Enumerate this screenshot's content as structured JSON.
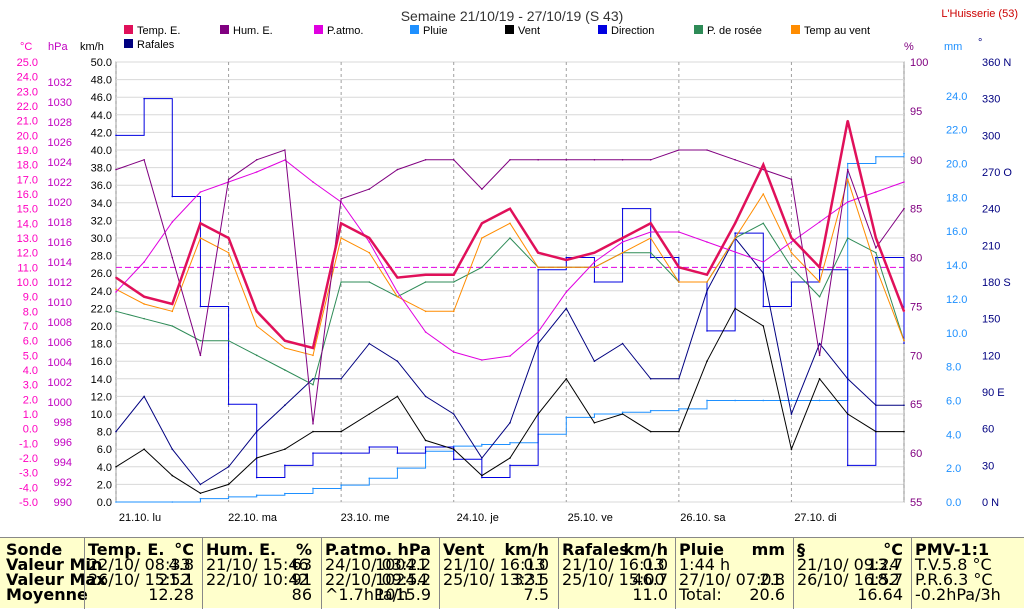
{
  "header": {
    "title": "Semaine 21/10/19 - 27/10/19 (S 43)",
    "station": "L'Huisserie (53)"
  },
  "units_left": {
    "celsius": "°C",
    "hpa": "hPa",
    "kmh": "km/h"
  },
  "units_right": {
    "pct": "%",
    "mm": "mm",
    "deg": "°"
  },
  "legend": [
    {
      "label": "Temp. E.",
      "color": "#E0105A"
    },
    {
      "label": "Rafales",
      "color": "#000080"
    },
    {
      "label": "Hum. E.",
      "color": "#800080"
    },
    {
      "label": "P.atmo.",
      "color": "#E000E0"
    },
    {
      "label": "Pluie",
      "color": "#1E90FF"
    },
    {
      "label": "Vent",
      "color": "#000000"
    },
    {
      "label": "Direction",
      "color": "#0000E0"
    },
    {
      "label": "P. de rosée",
      "color": "#2E8B57"
    },
    {
      "label": "Temp au vent",
      "color": "#FF8C00"
    }
  ],
  "colors": {
    "grid": "#A0A0A0",
    "temp_axis": "#FF00C0",
    "hpa_axis": "#C000C0",
    "hum_axis": "#800080",
    "rain_axis": "#1E90FF",
    "dir_axis": "#000080",
    "ref_line": "#E000E0"
  },
  "chart_data": {
    "type": "line",
    "title": "Semaine 21/10/19 - 27/10/19 (S 43)",
    "x_categories": [
      "21.10. lu",
      "22.10. ma",
      "23.10. me",
      "24.10. je",
      "25.10. ve",
      "26.10. sa",
      "27.10. di"
    ],
    "x_range_hours": [
      0,
      168
    ],
    "axes": {
      "temp_c": {
        "min": -5,
        "max": 25,
        "ticks": [
          "25.0",
          "24.0",
          "23.0",
          "22.0",
          "21.0",
          "20.0",
          "19.0",
          "18.0",
          "17.0",
          "16.0",
          "15.0",
          "14.0",
          "13.0",
          "12.0",
          "11.0",
          "10.0",
          "9.0",
          "8.0",
          "7.0",
          "6.0",
          "5.0",
          "4.0",
          "3.0",
          "2.0",
          "1.0",
          "0.0",
          "-1.0",
          "-2.0",
          "-3.0",
          "-4.0",
          "-5.0"
        ]
      },
      "pressure_hpa": {
        "min": 990,
        "max": 1034,
        "ticks": [
          "1032",
          "1030",
          "1028",
          "1026",
          "1024",
          "1022",
          "1020",
          "1018",
          "1016",
          "1014",
          "1012",
          "1010",
          "1008",
          "1006",
          "1004",
          "1002",
          "1000",
          "998",
          "996",
          "994",
          "992",
          "990"
        ]
      },
      "wind_kmh": {
        "min": 0,
        "max": 50,
        "ticks": [
          "50.0",
          "48.0",
          "46.0",
          "44.0",
          "42.0",
          "40.0",
          "38.0",
          "36.0",
          "34.0",
          "32.0",
          "30.0",
          "28.0",
          "26.0",
          "24.0",
          "22.0",
          "20.0",
          "18.0",
          "16.0",
          "14.0",
          "12.0",
          "10.0",
          "8.0",
          "6.0",
          "4.0",
          "2.0",
          "0.0"
        ]
      },
      "humidity_pct": {
        "min": 55,
        "max": 100,
        "ticks": [
          "100",
          "95",
          "90",
          "85",
          "80",
          "75",
          "70",
          "65",
          "60",
          "55"
        ]
      },
      "rain_mm": {
        "min": 0,
        "max": 26,
        "ticks": [
          "24.0",
          "22.0",
          "20.0",
          "18.0",
          "16.0",
          "14.0",
          "12.0",
          "10.0",
          "8.0",
          "6.0",
          "4.0",
          "2.0",
          "0.0"
        ]
      },
      "direction_deg": {
        "min": 0,
        "max": 360,
        "ticks": [
          "360 N",
          "330",
          "300",
          "270 O",
          "240",
          "210",
          "180 S",
          "150",
          "120",
          "90 E",
          "60",
          "30",
          "0 N"
        ]
      }
    },
    "reference_line_c": 11.0,
    "series": [
      {
        "name": "Temp. E.",
        "axis": "temp_c",
        "t": [
          0,
          6,
          12,
          18,
          24,
          30,
          36,
          42,
          48,
          54,
          60,
          66,
          72,
          78,
          84,
          90,
          96,
          102,
          108,
          114,
          120,
          126,
          132,
          138,
          144,
          150,
          156,
          162,
          168
        ],
        "values": [
          10.3,
          9,
          8.5,
          14,
          13,
          8,
          6,
          5.5,
          14,
          13,
          10.3,
          10.5,
          10.5,
          14,
          15,
          12,
          11.5,
          12,
          13,
          14,
          11,
          10.5,
          14,
          18,
          13,
          11,
          21,
          13,
          8
        ]
      },
      {
        "name": "Hum. E.",
        "axis": "humidity_pct",
        "t": [
          0,
          6,
          12,
          18,
          24,
          30,
          36,
          42,
          48,
          54,
          60,
          66,
          72,
          78,
          84,
          90,
          96,
          102,
          108,
          114,
          120,
          126,
          132,
          138,
          144,
          150,
          156,
          162,
          168
        ],
        "values": [
          89,
          90,
          80,
          70,
          88,
          90,
          91,
          63,
          86,
          87,
          89,
          90,
          90,
          87,
          90,
          90,
          90,
          90,
          90,
          90,
          91,
          91,
          90,
          89,
          88,
          70,
          89,
          81,
          85
        ]
      },
      {
        "name": "P.atmo.",
        "axis": "pressure_hpa",
        "t": [
          0,
          6,
          12,
          18,
          24,
          30,
          36,
          42,
          48,
          54,
          60,
          66,
          72,
          78,
          84,
          90,
          96,
          102,
          108,
          114,
          120,
          126,
          132,
          138,
          144,
          150,
          156,
          162,
          168
        ],
        "values": [
          1011,
          1014,
          1018,
          1021,
          1022,
          1023,
          1024.2,
          1022,
          1020,
          1016,
          1011,
          1007,
          1005,
          1004.2,
          1004.6,
          1007,
          1011,
          1014,
          1016,
          1017,
          1017,
          1016,
          1015,
          1014,
          1016,
          1018,
          1020,
          1021,
          1022
        ]
      },
      {
        "name": "Pluie",
        "axis": "rain_mm",
        "t": [
          0,
          12,
          18,
          24,
          30,
          36,
          42,
          48,
          54,
          60,
          66,
          72,
          78,
          84,
          90,
          96,
          102,
          108,
          114,
          120,
          126,
          132,
          138,
          144,
          150,
          156,
          162,
          168
        ],
        "values": [
          0,
          0,
          0.2,
          0.3,
          0.4,
          0.5,
          0.8,
          1.0,
          1.4,
          2.0,
          3.0,
          3.3,
          3.4,
          3.5,
          4.0,
          5.0,
          5.2,
          5.3,
          5.4,
          5.5,
          6.0,
          6.0,
          6.0,
          6.0,
          6.0,
          20.0,
          20.4,
          20.6
        ]
      },
      {
        "name": "Vent",
        "axis": "wind_kmh",
        "t": [
          0,
          6,
          12,
          18,
          24,
          30,
          36,
          42,
          48,
          54,
          60,
          66,
          72,
          78,
          84,
          90,
          96,
          102,
          108,
          114,
          120,
          126,
          132,
          138,
          144,
          150,
          156,
          162,
          168
        ],
        "values": [
          4,
          6,
          3,
          1,
          2,
          5,
          6,
          8,
          8,
          10,
          12,
          7,
          6,
          3,
          5,
          10,
          14,
          9,
          10,
          8,
          8,
          16,
          22,
          20,
          6,
          14,
          10,
          8,
          8
        ]
      },
      {
        "name": "Rafales",
        "axis": "wind_kmh",
        "t": [
          0,
          6,
          12,
          18,
          24,
          30,
          36,
          42,
          48,
          54,
          60,
          66,
          72,
          78,
          84,
          90,
          96,
          102,
          108,
          114,
          120,
          126,
          132,
          138,
          144,
          150,
          156,
          162,
          168
        ],
        "values": [
          8,
          12,
          6,
          2,
          4,
          8,
          11,
          14,
          14,
          18,
          16,
          12,
          10,
          5,
          9,
          18,
          22,
          16,
          18,
          14,
          14,
          24,
          30,
          26,
          10,
          18,
          14,
          11,
          11
        ]
      },
      {
        "name": "Direction",
        "axis": "direction_deg",
        "t": [
          0,
          6,
          12,
          18,
          24,
          30,
          36,
          42,
          48,
          54,
          60,
          66,
          72,
          78,
          84,
          90,
          96,
          102,
          108,
          114,
          120,
          126,
          132,
          138,
          144,
          150,
          156,
          162,
          168
        ],
        "values": [
          300,
          330,
          250,
          160,
          80,
          20,
          30,
          40,
          40,
          45,
          40,
          45,
          35,
          20,
          30,
          190,
          200,
          180,
          240,
          200,
          180,
          140,
          220,
          160,
          180,
          190,
          30,
          200,
          130
        ]
      },
      {
        "name": "P. de rosée",
        "axis": "temp_c",
        "t": [
          0,
          6,
          12,
          18,
          24,
          30,
          36,
          42,
          48,
          54,
          60,
          66,
          72,
          78,
          84,
          90,
          96,
          102,
          108,
          114,
          120,
          126,
          132,
          138,
          144,
          150,
          156,
          162,
          168
        ],
        "values": [
          8,
          7.5,
          7,
          6,
          6,
          5,
          4,
          3,
          10,
          10,
          9,
          10,
          10,
          11,
          13,
          11,
          11,
          11,
          12,
          12,
          10,
          10,
          13,
          14,
          11,
          9,
          13,
          12,
          6
        ]
      },
      {
        "name": "Temp au vent",
        "axis": "temp_c",
        "t": [
          0,
          6,
          12,
          18,
          24,
          30,
          36,
          42,
          48,
          54,
          60,
          66,
          72,
          78,
          84,
          90,
          96,
          102,
          108,
          114,
          120,
          126,
          132,
          138,
          144,
          150,
          156,
          162,
          168
        ],
        "values": [
          9.5,
          8.5,
          8,
          13,
          12,
          7,
          5.5,
          5,
          13,
          12,
          9,
          8,
          8,
          13,
          14,
          11,
          11,
          11,
          12,
          13,
          10,
          10,
          13,
          16,
          12,
          10,
          17,
          11,
          6
        ]
      }
    ]
  },
  "table": {
    "row_labels": {
      "title": "Sonde",
      "min": "Valeur Min",
      "max": "Valeur Max",
      "avg": "Moyenne"
    },
    "columns": [
      {
        "title": "Temp. E.",
        "unit": "°C",
        "min_date": "22/10/ 08:33",
        "min_val": "4.8",
        "max_date": "26/10/ 15:52",
        "max_val": "21.1",
        "avg_date": "",
        "avg_val": "12.28"
      },
      {
        "title": "Hum. E.",
        "unit": "%",
        "min_date": "21/10/ 15:46",
        "min_val": "63",
        "max_date": "22/10/ 10:42",
        "max_val": "91",
        "avg_date": "",
        "avg_val": "86"
      },
      {
        "title": "P.atmo.",
        "unit": "hPa",
        "min_date": "24/10/ 03:21",
        "min_val": "1004.2",
        "max_date": "22/10/ 09:54",
        "max_val": "1024.2",
        "avg_date": "^1.7hPa/h",
        "avg_val": "1015.9"
      },
      {
        "title": "Vent",
        "unit": "km/h",
        "min_date": "21/10/ 16:13",
        "min_val": "0.0",
        "max_date": "25/10/ 13:31",
        "max_val": "32.5",
        "avg_date": "",
        "avg_val": "7.5"
      },
      {
        "title": "Rafales",
        "unit": "km/h",
        "min_date": "21/10/ 16:13",
        "min_val": "0.0",
        "max_date": "25/10/ 15:00",
        "max_val": "46.7",
        "avg_date": "",
        "avg_val": "11.0"
      },
      {
        "title": "Pluie",
        "unit": "mm",
        "min_date": "1:44 h",
        "min_val": "",
        "max_date": "27/10/ 07:01",
        "max_val": "2.8",
        "avg_date": "Total:",
        "avg_val": "20.6"
      },
      {
        "title": "§",
        "unit": "°C",
        "min_date": "21/10/ 09:24",
        "min_val": "13.7",
        "max_date": "26/10/ 16:52",
        "max_val": "18.7",
        "avg_date": "",
        "avg_val": "16.64"
      },
      {
        "title": "PMV-1:1",
        "unit": "",
        "min_date": "T.V.5.8 °C",
        "min_val": "",
        "max_date": "P.R.6.3 °C",
        "max_val": "",
        "avg_date": "-0.2hPa/3h",
        "avg_val": ""
      }
    ]
  }
}
